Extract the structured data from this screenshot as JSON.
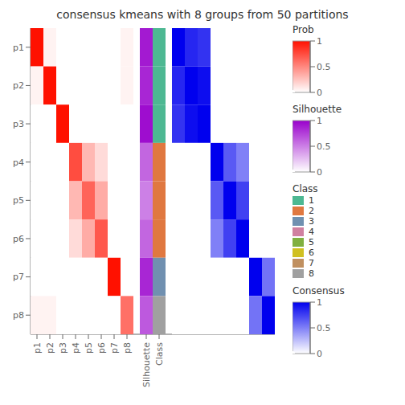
{
  "chart_data": {
    "type": "heatmap",
    "title": "consensus kmeans with 8 groups from 50 partitions",
    "categories": [
      "p1",
      "p2",
      "p3",
      "p4",
      "p5",
      "p6",
      "p7",
      "p8"
    ],
    "series": [
      {
        "name": "Prob",
        "type": "heatmap",
        "values": [
          [
            1.0,
            0.05,
            0.0,
            0.0,
            0.0,
            0.0,
            0.0,
            0.05
          ],
          [
            0.05,
            1.0,
            0.0,
            0.0,
            0.0,
            0.0,
            0.0,
            0.05
          ],
          [
            0.0,
            0.0,
            1.0,
            0.0,
            0.0,
            0.0,
            0.0,
            0.0
          ],
          [
            0.0,
            0.0,
            0.0,
            0.75,
            0.3,
            0.15,
            0.0,
            0.0
          ],
          [
            0.0,
            0.0,
            0.0,
            0.3,
            0.65,
            0.35,
            0.0,
            0.0
          ],
          [
            0.0,
            0.0,
            0.0,
            0.15,
            0.35,
            0.7,
            0.0,
            0.0
          ],
          [
            0.0,
            0.0,
            0.0,
            0.0,
            0.0,
            0.0,
            1.0,
            0.0
          ],
          [
            0.05,
            0.05,
            0.0,
            0.0,
            0.0,
            0.0,
            0.0,
            0.6
          ]
        ],
        "colors": [
          "#FFFFFF",
          "#FF1100"
        ],
        "clim": [
          0,
          1
        ],
        "cticks": [
          0,
          0.5,
          1
        ]
      },
      {
        "name": "Silhouette",
        "type": "strip",
        "values": [
          0.9,
          0.85,
          0.95,
          0.6,
          0.5,
          0.6,
          0.85,
          0.65
        ],
        "colors": [
          "#FFFFFF",
          "#9900CC"
        ],
        "clim": [
          0,
          1
        ],
        "cticks": [
          0,
          0.5,
          1
        ]
      },
      {
        "name": "Class",
        "type": "class",
        "values": [
          1,
          1,
          1,
          2,
          2,
          2,
          3,
          8
        ],
        "classes": [
          "1",
          "2",
          "3",
          "4",
          "5",
          "6",
          "7",
          "8"
        ],
        "colors": [
          "#4db892",
          "#e07840",
          "#7090b0",
          "#d080a0",
          "#80b040",
          "#d0c020",
          "#c09060",
          "#a0a0a0"
        ]
      },
      {
        "name": "Consensus",
        "type": "heatmap",
        "tick_labels": false,
        "values": [
          [
            1.0,
            0.85,
            0.8,
            0.0,
            0.0,
            0.0,
            0.0,
            0.0
          ],
          [
            0.85,
            1.0,
            0.95,
            0.0,
            0.0,
            0.0,
            0.0,
            0.0
          ],
          [
            0.8,
            0.95,
            1.0,
            0.0,
            0.0,
            0.0,
            0.0,
            0.0
          ],
          [
            0.0,
            0.0,
            0.0,
            1.0,
            0.65,
            0.5,
            0.0,
            0.0
          ],
          [
            0.0,
            0.0,
            0.0,
            0.65,
            1.0,
            0.75,
            0.0,
            0.0
          ],
          [
            0.0,
            0.0,
            0.0,
            0.5,
            0.75,
            1.0,
            0.0,
            0.0
          ],
          [
            0.0,
            0.0,
            0.0,
            0.0,
            0.0,
            0.0,
            1.0,
            0.55
          ],
          [
            0.0,
            0.0,
            0.0,
            0.0,
            0.0,
            0.0,
            0.55,
            1.0
          ]
        ],
        "colors": [
          "#FFFFFF",
          "#0000EE"
        ],
        "clim": [
          0,
          1
        ],
        "cticks": [
          0,
          0.5,
          1
        ]
      }
    ]
  }
}
